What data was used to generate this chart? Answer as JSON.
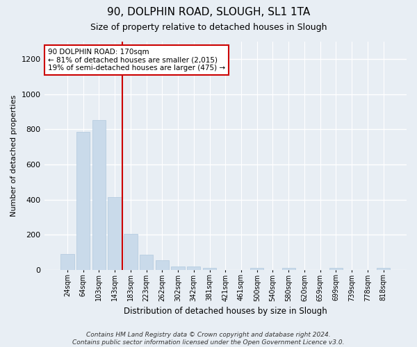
{
  "title_line1": "90, DOLPHIN ROAD, SLOUGH, SL1 1TA",
  "title_line2": "Size of property relative to detached houses in Slough",
  "xlabel": "Distribution of detached houses by size in Slough",
  "ylabel": "Number of detached properties",
  "bar_labels": [
    "24sqm",
    "64sqm",
    "103sqm",
    "143sqm",
    "183sqm",
    "223sqm",
    "262sqm",
    "302sqm",
    "342sqm",
    "381sqm",
    "421sqm",
    "461sqm",
    "500sqm",
    "540sqm",
    "580sqm",
    "620sqm",
    "659sqm",
    "699sqm",
    "739sqm",
    "778sqm",
    "818sqm"
  ],
  "bar_values": [
    90,
    785,
    855,
    415,
    205,
    85,
    55,
    20,
    20,
    12,
    0,
    0,
    12,
    0,
    12,
    0,
    0,
    12,
    0,
    0,
    12
  ],
  "bar_color": "#c9daea",
  "bar_edgecolor": "#b0c8de",
  "vline_color": "#cc0000",
  "annotation_text": "90 DOLPHIN ROAD: 170sqm\n← 81% of detached houses are smaller (2,015)\n19% of semi-detached houses are larger (475) →",
  "annotation_box_color": "white",
  "annotation_box_edgecolor": "#cc0000",
  "ylim": [
    0,
    1300
  ],
  "yticks": [
    0,
    200,
    400,
    600,
    800,
    1000,
    1200
  ],
  "footnote": "Contains HM Land Registry data © Crown copyright and database right 2024.\nContains public sector information licensed under the Open Government Licence v3.0.",
  "bg_color": "#e8eef4",
  "plot_bg_color": "#e8eef4",
  "grid_color": "white"
}
